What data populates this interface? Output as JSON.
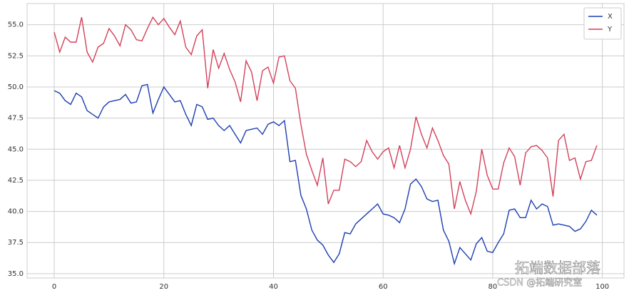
{
  "chart_data": {
    "type": "line",
    "x": [
      0,
      1,
      2,
      3,
      4,
      5,
      6,
      7,
      8,
      9,
      10,
      11,
      12,
      13,
      14,
      15,
      16,
      17,
      18,
      19,
      20,
      21,
      22,
      23,
      24,
      25,
      26,
      27,
      28,
      29,
      30,
      31,
      32,
      33,
      34,
      35,
      36,
      37,
      38,
      39,
      40,
      41,
      42,
      43,
      44,
      45,
      46,
      47,
      48,
      49,
      50,
      51,
      52,
      53,
      54,
      55,
      56,
      57,
      58,
      59,
      60,
      61,
      62,
      63,
      64,
      65,
      66,
      67,
      68,
      69,
      70,
      71,
      72,
      73,
      74,
      75,
      76,
      77,
      78,
      79,
      80,
      81,
      82,
      83,
      84,
      85,
      86,
      87,
      88,
      89,
      90,
      91,
      92,
      93,
      94,
      95,
      96,
      97,
      98,
      99
    ],
    "series": [
      {
        "name": "X",
        "color": "#1c3eb0",
        "values": [
          49.7,
          49.5,
          48.9,
          48.6,
          49.5,
          49.2,
          48.1,
          47.8,
          47.5,
          48.4,
          48.8,
          48.9,
          49.0,
          49.4,
          48.7,
          48.8,
          50.1,
          50.2,
          47.9,
          49.0,
          50.0,
          49.4,
          48.8,
          48.9,
          47.8,
          46.9,
          48.6,
          48.4,
          47.4,
          47.5,
          46.9,
          46.5,
          46.9,
          46.2,
          45.5,
          46.5,
          46.6,
          46.7,
          46.2,
          47.0,
          47.2,
          46.9,
          47.3,
          44.0,
          44.1,
          41.3,
          40.2,
          38.5,
          37.7,
          37.3,
          36.5,
          35.9,
          36.6,
          38.3,
          38.2,
          39.0,
          39.4,
          39.8,
          40.2,
          40.6,
          39.8,
          39.7,
          39.5,
          39.1,
          40.2,
          42.2,
          42.6,
          42.0,
          41.0,
          40.8,
          40.9,
          38.5,
          37.6,
          35.8,
          37.1,
          36.6,
          36.1,
          37.4,
          37.9,
          36.8,
          36.7,
          37.5,
          38.2,
          40.1,
          40.2,
          39.5,
          39.5,
          40.9,
          40.2,
          40.6,
          40.4,
          38.9,
          39.0,
          38.9,
          38.8,
          38.4,
          38.6,
          39.2,
          40.1,
          39.7
        ]
      },
      {
        "name": "Y",
        "color": "#d2415a",
        "values": [
          54.4,
          52.8,
          54.0,
          53.6,
          53.6,
          55.6,
          52.8,
          52.0,
          53.2,
          53.5,
          54.7,
          54.1,
          53.3,
          55.0,
          54.6,
          53.8,
          53.7,
          54.7,
          55.6,
          55.0,
          55.5,
          54.8,
          54.2,
          55.3,
          53.2,
          52.6,
          54.1,
          54.6,
          49.9,
          53.0,
          51.5,
          52.7,
          51.4,
          50.4,
          48.8,
          52.1,
          51.2,
          48.9,
          51.3,
          51.6,
          50.3,
          52.4,
          52.5,
          50.5,
          49.9,
          47.0,
          44.6,
          43.3,
          42.1,
          44.3,
          40.6,
          41.7,
          41.7,
          44.2,
          44.0,
          43.6,
          44.0,
          45.7,
          44.8,
          44.2,
          44.8,
          45.1,
          43.5,
          45.3,
          43.5,
          45.0,
          47.6,
          46.2,
          45.1,
          46.7,
          45.7,
          44.5,
          43.8,
          40.2,
          42.4,
          40.9,
          39.8,
          41.6,
          45.0,
          42.9,
          41.8,
          41.8,
          43.9,
          45.1,
          44.4,
          42.1,
          44.7,
          45.2,
          45.3,
          44.9,
          44.3,
          41.2,
          45.7,
          46.2,
          44.1,
          44.3,
          42.6,
          44.0,
          44.1,
          45.3
        ]
      }
    ],
    "xlim": [
      -4.95,
      103.95
    ],
    "ylim": [
      34.65,
      56.7
    ],
    "xticks": [
      0,
      20,
      40,
      60,
      80,
      100
    ],
    "yticks": [
      {
        "value": 35,
        "label": "35.0"
      },
      {
        "value": 37.5,
        "label": "37.5"
      },
      {
        "value": 40,
        "label": "40.0"
      },
      {
        "value": 42.5,
        "label": "42.5"
      },
      {
        "value": 45,
        "label": "45.0"
      },
      {
        "value": 47.5,
        "label": "47.5"
      },
      {
        "value": 50,
        "label": "50.0"
      },
      {
        "value": 52.5,
        "label": "52.5"
      },
      {
        "value": 55,
        "label": "55.0"
      }
    ],
    "grid": true,
    "legend": "upper right",
    "watermark": [
      "拓端数据部落",
      "CSDN @拓端研究室"
    ]
  }
}
